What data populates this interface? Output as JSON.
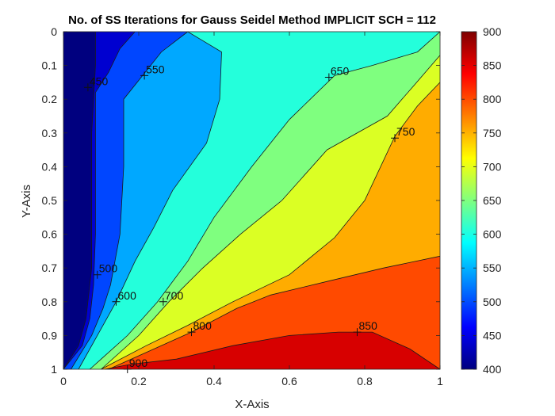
{
  "chart_data": {
    "type": "contour",
    "title": "No. of SS Iterations for Gauss Seidel Method IMPLICIT SCH = 112",
    "xlabel": "X-Axis",
    "ylabel": "Y-Axis",
    "xlim": [
      0,
      1
    ],
    "ylim": [
      0,
      1
    ],
    "y_reversed": true,
    "grid": false,
    "x_ticks": [
      "0",
      "0.2",
      "0.4",
      "0.6",
      "0.8",
      "1"
    ],
    "y_ticks": [
      "0",
      "0.1",
      "0.2",
      "0.3",
      "0.4",
      "0.5",
      "0.6",
      "0.7",
      "0.8",
      "0.9",
      "1"
    ],
    "colorbar": {
      "range": [
        400,
        900
      ],
      "ticks": [
        "400",
        "450",
        "500",
        "550",
        "600",
        "650",
        "700",
        "750",
        "800",
        "850",
        "900"
      ],
      "colormap": "jet"
    },
    "levels": [
      450,
      500,
      550,
      600,
      650,
      700,
      750,
      800,
      850,
      900
    ],
    "bands": [
      {
        "level": 400,
        "color": "#00007f"
      },
      {
        "level": 450,
        "color": "#0000d0"
      },
      {
        "level": 500,
        "color": "#0046ff"
      },
      {
        "level": 550,
        "color": "#00a8ff"
      },
      {
        "level": 600,
        "color": "#24ffdb"
      },
      {
        "level": 650,
        "color": "#7fff7f"
      },
      {
        "level": 700,
        "color": "#dbff24"
      },
      {
        "level": 750,
        "color": "#ffac00"
      },
      {
        "level": 800,
        "color": "#ff4a00"
      },
      {
        "level": 850,
        "color": "#d70000"
      }
    ],
    "contours": [
      {
        "level": 450,
        "points": [
          [
            0.085,
            0
          ],
          [
            0.085,
            0.1
          ],
          [
            0.075,
            0.3
          ],
          [
            0.075,
            0.5
          ],
          [
            0.075,
            0.7
          ],
          [
            0.06,
            0.85
          ],
          [
            0.04,
            0.93
          ],
          [
            0,
            1
          ]
        ]
      },
      {
        "level": 500,
        "points": [
          [
            0.19,
            0
          ],
          [
            0.15,
            0.05
          ],
          [
            0.12,
            0.12
          ],
          [
            0.085,
            0.18
          ],
          [
            0.085,
            0.25
          ],
          [
            0.085,
            0.4
          ],
          [
            0.085,
            0.6
          ],
          [
            0.08,
            0.75
          ],
          [
            0.07,
            0.85
          ],
          [
            0.05,
            0.93
          ],
          [
            0,
            1
          ]
        ]
      },
      {
        "level": 550,
        "points": [
          [
            0.33,
            0
          ],
          [
            0.26,
            0.06
          ],
          [
            0.21,
            0.13
          ],
          [
            0.16,
            0.2
          ],
          [
            0.16,
            0.25
          ],
          [
            0.16,
            0.4
          ],
          [
            0.15,
            0.6
          ],
          [
            0.125,
            0.75
          ],
          [
            0.105,
            0.82
          ],
          [
            0.075,
            0.9
          ],
          [
            0.02,
            1
          ]
        ]
      },
      {
        "level": 600,
        "points": [
          [
            0.33,
            0
          ],
          [
            0.42,
            0.06
          ],
          [
            0.415,
            0.2
          ],
          [
            0.38,
            0.33
          ],
          [
            0.29,
            0.47
          ],
          [
            0.24,
            0.58
          ],
          [
            0.19,
            0.68
          ],
          [
            0.14,
            0.8
          ],
          [
            0.1,
            0.88
          ],
          [
            0.04,
            1
          ]
        ]
      },
      {
        "level": 650,
        "points": [
          [
            1,
            0
          ],
          [
            0.94,
            0.06
          ],
          [
            0.82,
            0.1
          ],
          [
            0.72,
            0.13
          ],
          [
            0.6,
            0.26
          ],
          [
            0.5,
            0.4
          ],
          [
            0.4,
            0.55
          ],
          [
            0.33,
            0.68
          ],
          [
            0.25,
            0.8
          ],
          [
            0.17,
            0.9
          ],
          [
            0.07,
            1
          ]
        ]
      },
      {
        "level": 700,
        "points": [
          [
            1,
            0.07
          ],
          [
            0.93,
            0.16
          ],
          [
            0.86,
            0.25
          ],
          [
            0.7,
            0.35
          ],
          [
            0.58,
            0.5
          ],
          [
            0.47,
            0.6
          ],
          [
            0.37,
            0.7
          ],
          [
            0.28,
            0.8
          ],
          [
            0.2,
            0.9
          ],
          [
            0.1,
            1
          ]
        ]
      },
      {
        "level": 750,
        "points": [
          [
            1,
            0.15
          ],
          [
            0.94,
            0.22
          ],
          [
            0.88,
            0.31
          ],
          [
            0.8,
            0.5
          ],
          [
            0.72,
            0.61
          ],
          [
            0.6,
            0.72
          ],
          [
            0.45,
            0.8
          ],
          [
            0.33,
            0.87
          ],
          [
            0.22,
            0.93
          ],
          [
            0.1,
            1
          ]
        ]
      },
      {
        "level": 800,
        "points": [
          [
            1,
            0.665
          ],
          [
            0.85,
            0.7
          ],
          [
            0.7,
            0.74
          ],
          [
            0.55,
            0.78
          ],
          [
            0.46,
            0.82
          ],
          [
            0.34,
            0.89
          ],
          [
            0.22,
            0.95
          ],
          [
            0.12,
            1
          ]
        ]
      },
      {
        "level": 850,
        "points": [
          [
            1,
            1
          ],
          [
            0.92,
            0.94
          ],
          [
            0.82,
            0.89
          ],
          [
            0.73,
            0.89
          ],
          [
            0.6,
            0.9
          ],
          [
            0.45,
            0.93
          ],
          [
            0.3,
            0.97
          ],
          [
            0.18,
            0.985
          ],
          [
            0.11,
            1
          ]
        ]
      }
    ],
    "labels": [
      {
        "text": "450",
        "x": 0.065,
        "y": 0.165
      },
      {
        "text": "500",
        "x": 0.09,
        "y": 0.72
      },
      {
        "text": "550",
        "x": 0.215,
        "y": 0.13
      },
      {
        "text": "600",
        "x": 0.14,
        "y": 0.8
      },
      {
        "text": "650",
        "x": 0.705,
        "y": 0.135
      },
      {
        "text": "700",
        "x": 0.265,
        "y": 0.8
      },
      {
        "text": "750",
        "x": 0.88,
        "y": 0.315
      },
      {
        "text": "800",
        "x": 0.34,
        "y": 0.89
      },
      {
        "text": "850",
        "x": 0.78,
        "y": 0.89
      },
      {
        "text": "900",
        "x": 0.17,
        "y": 1.0
      }
    ]
  }
}
